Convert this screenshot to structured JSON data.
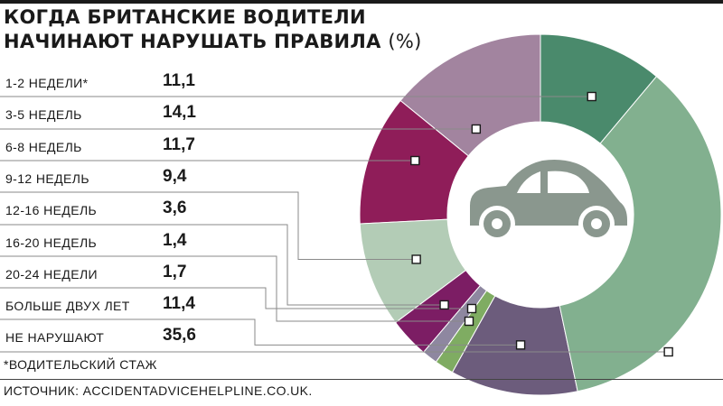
{
  "title": {
    "line1": "КОГДА БРИТАНСКИЕ ВОДИТЕЛИ",
    "line2": "НАЧИНАЮТ НАРУШАТЬ ПРАВИЛА",
    "unit": "(%)"
  },
  "footnote": "*ВОДИТЕЛЬСКИЙ СТАЖ",
  "source": "ИСТОЧНИК: ACCIDENTADVICEHELPLINE.CO.UK.",
  "center_icon": "car-icon",
  "chart_data": {
    "type": "pie",
    "variant": "donut",
    "start_angle_deg": 0,
    "direction": "clockwise",
    "categories": [
      "1-2 НЕДЕЛИ*",
      "3-5 НЕДЕЛЬ",
      "6-8 НЕДЕЛЬ",
      "9-12 НЕДЕЛЬ",
      "12-16 НЕДЕЛЬ",
      "16-20 НЕДЕЛЬ",
      "20-24 НЕДЕЛИ",
      "БОЛЬШЕ ДВУХ ЛЕТ",
      "НЕ НАРУШАЮТ"
    ],
    "labels": [
      "11,1",
      "14,1",
      "11,7",
      "9,4",
      "3,6",
      "1,4",
      "1,7",
      "11,4",
      "35,6"
    ],
    "values": [
      11.1,
      14.1,
      11.7,
      9.4,
      3.6,
      1.4,
      1.7,
      11.4,
      35.6
    ],
    "colors": [
      "#4a8a6c",
      "#a2849f",
      "#8f1d59",
      "#b3ccb6",
      "#7c1d64",
      "#8e87a0",
      "#7fac62",
      "#6c5c7c",
      "#82b08f"
    ],
    "draw_order": [
      0,
      8,
      7,
      6,
      5,
      4,
      3,
      2,
      1
    ],
    "car_color": "#8a978e"
  }
}
